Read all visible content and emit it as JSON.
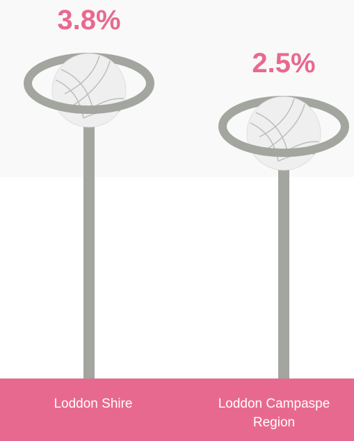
{
  "chart_data": {
    "type": "bar",
    "categories": [
      "Loddon Shire",
      "Loddon Campaspe Region"
    ],
    "values": [
      3.8,
      2.5
    ],
    "value_labels": [
      "3.8%",
      "2.5%"
    ],
    "color": "#a3a59f",
    "label_color": "#e8698f",
    "band_color": "#e8698f"
  }
}
